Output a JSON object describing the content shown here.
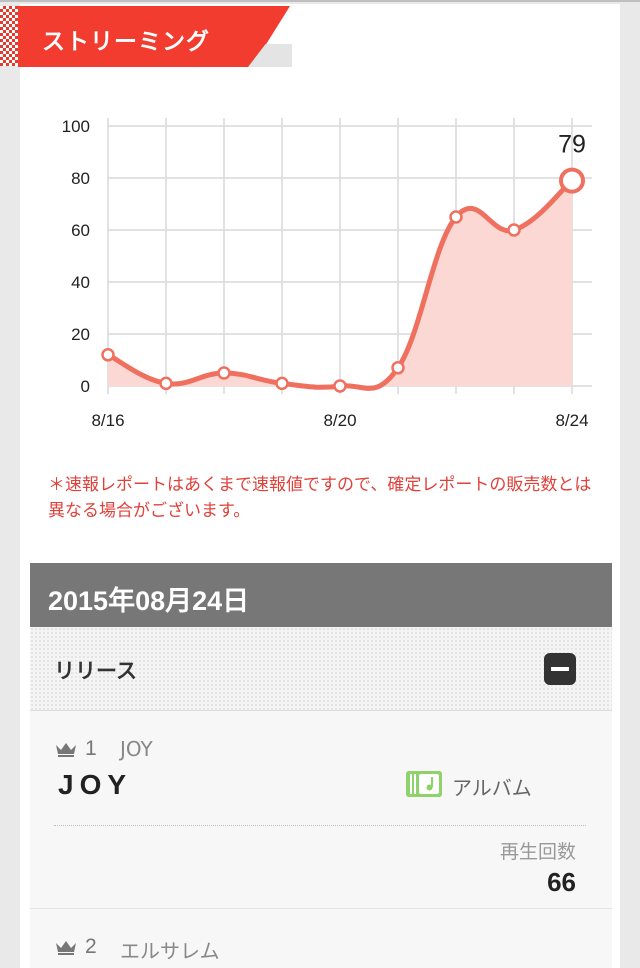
{
  "section": {
    "title": "ストリーミング"
  },
  "chart_data": {
    "type": "area",
    "categories": [
      "8/16",
      "8/17",
      "8/18",
      "8/19",
      "8/20",
      "8/21",
      "8/22",
      "8/23",
      "8/24"
    ],
    "x_tick_labels": [
      "8/16",
      "8/20",
      "8/24"
    ],
    "values": [
      12,
      1,
      5,
      1,
      0,
      7,
      65,
      60,
      79
    ],
    "ylim": [
      0,
      100
    ],
    "yticks": [
      0,
      20,
      40,
      60,
      80,
      100
    ],
    "data_label": "79",
    "grid": true,
    "line_color": "#f07060",
    "fill_color": "#fcd8d4"
  },
  "notice": "＊速報レポートはあくまで速報値ですので、確定レポートの販売数とは異なる場合がございます。",
  "date_header": "2015年08月24日",
  "release": {
    "title": "リリース",
    "items": [
      {
        "rank": "1",
        "artist": "JOY",
        "title": "JOY",
        "type_label": "アルバム",
        "plays_label": "再生回数",
        "plays": "66"
      },
      {
        "rank": "2",
        "artist": "エルサレム"
      }
    ]
  },
  "colors": {
    "accent": "#f23c2f",
    "header_gray": "#777777",
    "notice": "#e0413a",
    "album_icon": "#8fd16a"
  }
}
